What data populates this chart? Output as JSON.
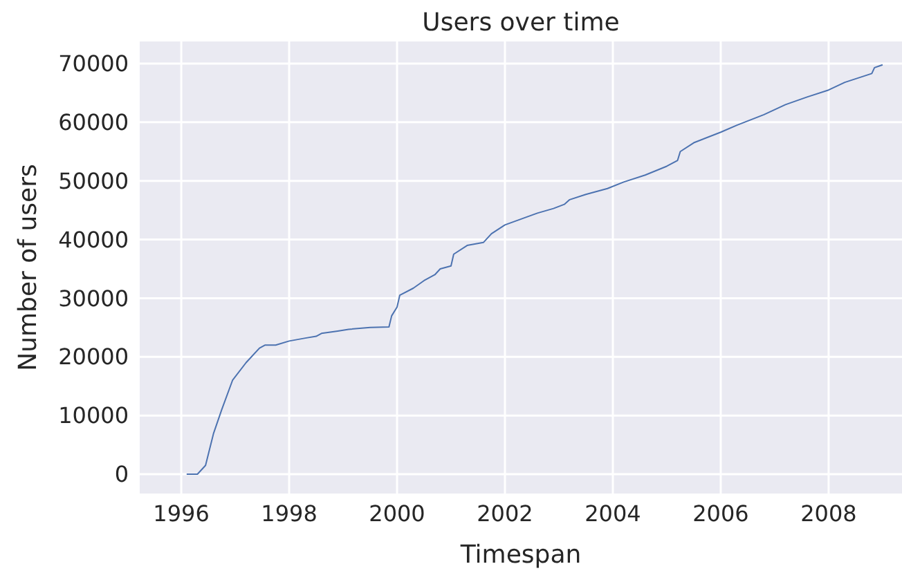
{
  "chart_data": {
    "type": "line",
    "title": "Users over time",
    "xlabel": "Timespan",
    "ylabel": "Number of users",
    "x": [
      1996.1,
      1996.3,
      1996.45,
      1996.6,
      1996.75,
      1996.95,
      1997.2,
      1997.45,
      1997.55,
      1997.75,
      1998.0,
      1998.3,
      1998.5,
      1998.6,
      1998.9,
      1999.1,
      1999.5,
      1999.85,
      1999.9,
      2000.0,
      2000.05,
      2000.3,
      2000.5,
      2000.7,
      2000.8,
      2001.0,
      2001.05,
      2001.3,
      2001.6,
      2001.75,
      2002.0,
      2002.3,
      2002.6,
      2002.9,
      2003.1,
      2003.2,
      2003.5,
      2003.9,
      2004.2,
      2004.6,
      2005.0,
      2005.2,
      2005.25,
      2005.5,
      2006.0,
      2006.3,
      2006.8,
      2007.2,
      2007.6,
      2008.0,
      2008.3,
      2008.8,
      2008.85,
      2009.0
    ],
    "series": [
      {
        "color": "#4c72b0",
        "values": [
          0,
          0,
          1500,
          7000,
          11000,
          16000,
          19000,
          21500,
          22000,
          22000,
          22700,
          23200,
          23500,
          24000,
          24400,
          24700,
          25000,
          25100,
          27000,
          28500,
          30500,
          31700,
          33000,
          34000,
          35000,
          35500,
          37500,
          39000,
          39500,
          41000,
          42500,
          43500,
          44500,
          45300,
          46000,
          46800,
          47700,
          48700,
          49800,
          51000,
          52500,
          53500,
          55000,
          56500,
          58300,
          59500,
          61300,
          63000,
          64300,
          65500,
          66800,
          68300,
          69300,
          69800
        ]
      }
    ],
    "xlim": [
      1995.23,
      2009.36
    ],
    "ylim": [
      -3300,
      73770
    ],
    "xticks": [
      1996,
      1998,
      2000,
      2002,
      2004,
      2006,
      2008
    ],
    "yticks": [
      0,
      10000,
      20000,
      30000,
      40000,
      50000,
      60000,
      70000
    ],
    "grid": true,
    "marker": "none",
    "line_style": "solid"
  }
}
